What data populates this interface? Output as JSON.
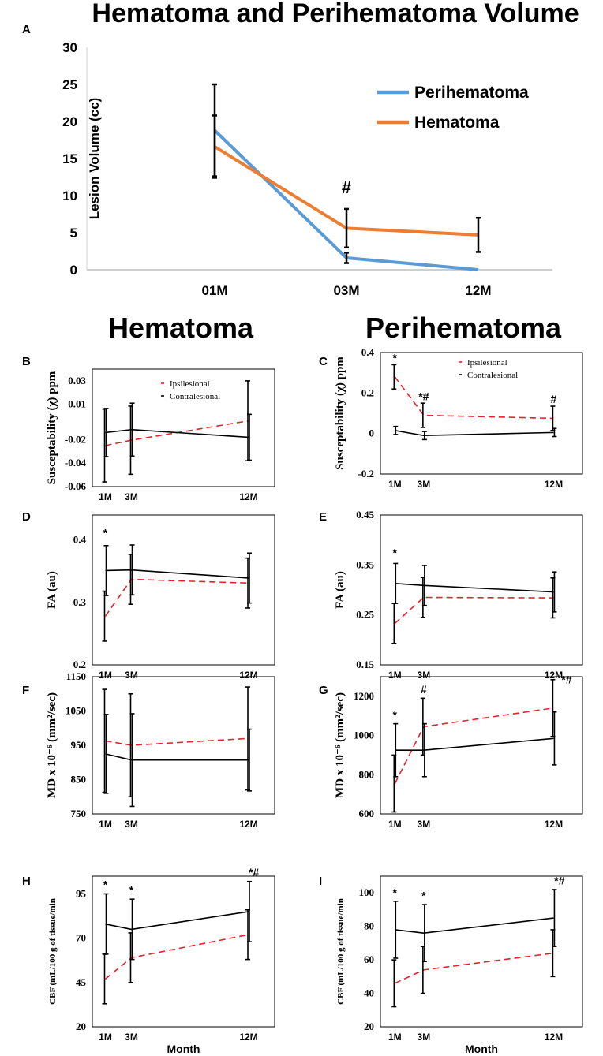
{
  "figure": {
    "panel_a_title": "Hematoma and Perihematoma Volume",
    "hematoma_heading": "Hematoma",
    "perihematoma_heading": "Perihematoma"
  },
  "chart_data": [
    {
      "id": "A",
      "type": "line",
      "panel_letter": "A",
      "ylabel": "Lesion Volume (cc)",
      "xlabel": "",
      "categories": [
        "01M",
        "03M",
        "12M"
      ],
      "ylim": [
        0,
        30
      ],
      "yticks": [
        0,
        5,
        10,
        15,
        20,
        25,
        30
      ],
      "ytick_labels": [
        "0",
        "5",
        "10",
        "15",
        "20",
        "25",
        "30"
      ],
      "legend": [
        "Perihematoma",
        "Hematoma"
      ],
      "series": [
        {
          "name": "Perihematoma",
          "color": "#5b9bd5",
          "dash": false,
          "x": [
            1,
            3,
            12
          ],
          "values": [
            18.8,
            1.6,
            0.0
          ],
          "err": [
            6.2,
            0.7,
            0
          ]
        },
        {
          "name": "Hematoma",
          "color": "#ed7d31",
          "dash": false,
          "x": [
            1,
            3,
            12
          ],
          "values": [
            16.6,
            5.6,
            4.7
          ],
          "err": [
            4.2,
            2.6,
            2.3
          ]
        }
      ],
      "annotations": [
        {
          "text": "#",
          "x": 3,
          "y": 10.3
        }
      ]
    },
    {
      "id": "B",
      "type": "line",
      "panel_letter": "B",
      "ylabel": "Susceptability (χ) ppm",
      "xlabel": "",
      "x_ticks": [
        1,
        3,
        12
      ],
      "x_tick_labels": [
        "1M",
        "3M",
        "12M"
      ],
      "xlim": [
        0,
        14
      ],
      "ylim": [
        -0.06,
        0.04
      ],
      "yticks": [
        -0.06,
        -0.04,
        -0.02,
        0.01,
        0.03
      ],
      "ytick_labels": [
        "-0.06",
        "-0.04",
        "-0.02",
        "0.01",
        "0.03"
      ],
      "legend": [
        "Ipsilesional",
        "Contralesional"
      ],
      "series": [
        {
          "name": "Ipsilesional",
          "color": "#e8222a",
          "dash": true,
          "x": [
            1,
            3,
            12
          ],
          "values": [
            -0.025,
            -0.0205,
            -0.004
          ],
          "err": [
            0.031,
            0.029,
            0.034
          ]
        },
        {
          "name": "Contralesional",
          "color": "#000000",
          "dash": false,
          "x": [
            1,
            3,
            12
          ],
          "values": [
            -0.014,
            -0.0115,
            -0.018
          ],
          "err": [
            0.0205,
            0.0225,
            0.0195
          ]
        }
      ],
      "annotations": []
    },
    {
      "id": "C",
      "type": "line",
      "panel_letter": "C",
      "ylabel": "Susceptability (χ) ppm",
      "xlabel": "",
      "x_ticks": [
        1,
        3,
        12
      ],
      "x_tick_labels": [
        "1M",
        "3M",
        "12M"
      ],
      "xlim": [
        0,
        14
      ],
      "ylim": [
        -0.2,
        0.4
      ],
      "yticks": [
        -0.2,
        0,
        0.2,
        0.4
      ],
      "ytick_labels": [
        "-0.2",
        "0",
        "0.2",
        "0.4"
      ],
      "legend": [
        "Ipsilesional",
        "Contralesional"
      ],
      "series": [
        {
          "name": "Ipsilesional",
          "color": "#e8222a",
          "dash": true,
          "x": [
            1,
            3,
            12
          ],
          "values": [
            0.28,
            0.09,
            0.075
          ],
          "err": [
            0.06,
            0.06,
            0.06
          ]
        },
        {
          "name": "Contralesional",
          "color": "#000000",
          "dash": false,
          "x": [
            1,
            3,
            12
          ],
          "values": [
            0.015,
            -0.01,
            0.005
          ],
          "err": [
            0.02,
            0.02,
            0.02
          ]
        }
      ],
      "annotations": [
        {
          "text": "*",
          "x": 1,
          "y": 0.355
        },
        {
          "text": "*#",
          "x": 3,
          "y": 0.165
        },
        {
          "text": "#",
          "x": 12,
          "y": 0.15
        }
      ]
    },
    {
      "id": "D",
      "type": "line",
      "panel_letter": "D",
      "ylabel": "FA (au)",
      "xlabel": "",
      "x_ticks": [
        1,
        3,
        12
      ],
      "x_tick_labels": [
        "1M",
        "3M",
        "12M"
      ],
      "xlim": [
        0,
        14
      ],
      "ylim": [
        0.2,
        0.44
      ],
      "yticks": [
        0.2,
        0.3,
        0.4
      ],
      "ytick_labels": [
        "0.2",
        "0.3",
        "0.4"
      ],
      "legend": [],
      "series": [
        {
          "name": "Ipsilesional",
          "color": "#e8222a",
          "dash": true,
          "x": [
            1,
            3,
            12
          ],
          "values": [
            0.278,
            0.337,
            0.331
          ],
          "err": [
            0.04,
            0.04,
            0.04
          ]
        },
        {
          "name": "Contralesional",
          "color": "#000000",
          "dash": false,
          "x": [
            1,
            3,
            12
          ],
          "values": [
            0.351,
            0.352,
            0.339
          ],
          "err": [
            0.04,
            0.04,
            0.04
          ]
        }
      ],
      "annotations": [
        {
          "text": "*",
          "x": 1,
          "y": 0.405
        }
      ]
    },
    {
      "id": "E",
      "type": "line",
      "panel_letter": "E",
      "ylabel": "FA (au)",
      "xlabel": "",
      "x_ticks": [
        1,
        3,
        12
      ],
      "x_tick_labels": [
        "1M",
        "3M",
        "12M"
      ],
      "xlim": [
        0,
        14
      ],
      "ylim": [
        0.15,
        0.45
      ],
      "yticks": [
        0.15,
        0.25,
        0.35,
        0.45
      ],
      "ytick_labels": [
        "0.15",
        "0.25",
        "0.35",
        "0.45"
      ],
      "legend": [],
      "series": [
        {
          "name": "Ipsilesional",
          "color": "#e8222a",
          "dash": true,
          "x": [
            1,
            3,
            12
          ],
          "values": [
            0.233,
            0.285,
            0.284
          ],
          "err": [
            0.04,
            0.04,
            0.04
          ]
        },
        {
          "name": "Contralesional",
          "color": "#000000",
          "dash": false,
          "x": [
            1,
            3,
            12
          ],
          "values": [
            0.313,
            0.309,
            0.296
          ],
          "err": [
            0.04,
            0.04,
            0.04
          ]
        }
      ],
      "annotations": [
        {
          "text": "*",
          "x": 1,
          "y": 0.367
        }
      ]
    },
    {
      "id": "F",
      "type": "line",
      "panel_letter": "F",
      "ylabel": "MD x 10⁻⁶ (mm²/sec)",
      "xlabel": "",
      "x_ticks": [
        1,
        3,
        12
      ],
      "x_tick_labels": [
        "1M",
        "3M",
        "12M"
      ],
      "xlim": [
        0,
        14
      ],
      "ylim": [
        750,
        1150
      ],
      "yticks": [
        750,
        850,
        950,
        1050,
        1150
      ],
      "ytick_labels": [
        "750",
        "850",
        "950",
        "1050",
        "1150"
      ],
      "legend": [],
      "series": [
        {
          "name": "Ipsilesional",
          "color": "#e8222a",
          "dash": true,
          "x": [
            1,
            3,
            12
          ],
          "values": [
            963,
            950,
            970
          ],
          "err": [
            150,
            150,
            150
          ]
        },
        {
          "name": "Contralesional",
          "color": "#000000",
          "dash": false,
          "x": [
            1,
            3,
            12
          ],
          "values": [
            925,
            907,
            907
          ],
          "err": [
            115,
            135,
            90
          ]
        }
      ],
      "annotations": []
    },
    {
      "id": "G",
      "type": "line",
      "panel_letter": "G",
      "ylabel": "MD x 10⁻⁶ (mm²/sec)",
      "xlabel": "",
      "x_ticks": [
        1,
        3,
        12
      ],
      "x_tick_labels": [
        "1M",
        "3M",
        "12M"
      ],
      "xlim": [
        0,
        14
      ],
      "ylim": [
        600,
        1300
      ],
      "yticks": [
        600,
        800,
        1000,
        1200
      ],
      "ytick_labels": [
        "600",
        "800",
        "1000",
        "1200"
      ],
      "legend": [],
      "series": [
        {
          "name": "Ipsilesional",
          "color": "#e8222a",
          "dash": true,
          "x": [
            1,
            3,
            12
          ],
          "values": [
            755,
            1045,
            1140
          ],
          "err": [
            145,
            145,
            145
          ]
        },
        {
          "name": "Contralesional",
          "color": "#000000",
          "dash": false,
          "x": [
            1,
            3,
            12
          ],
          "values": [
            925,
            925,
            985
          ],
          "err": [
            135,
            135,
            135
          ]
        }
      ],
      "annotations": [
        {
          "text": "*",
          "x": 1,
          "y": 1085
        },
        {
          "text": "#",
          "x": 3,
          "y": 1215
        },
        {
          "text": "*#",
          "x": 12.9,
          "y": 1265
        }
      ]
    },
    {
      "id": "H",
      "type": "line",
      "panel_letter": "H",
      "ylabel": "CBF (mL/100 g of tissue/min",
      "xlabel": "Month",
      "x_ticks": [
        1,
        3,
        12
      ],
      "x_tick_labels": [
        "1M",
        "3M",
        "12M"
      ],
      "xlim": [
        0,
        14
      ],
      "ylim": [
        20,
        105
      ],
      "yticks": [
        20,
        45,
        70,
        95
      ],
      "ytick_labels": [
        "20",
        "45",
        "70",
        "95"
      ],
      "legend": [],
      "series": [
        {
          "name": "Ipsilesional",
          "color": "#e8222a",
          "dash": true,
          "x": [
            1,
            3,
            12
          ],
          "values": [
            47,
            59,
            72
          ],
          "err": [
            14,
            14,
            14
          ]
        },
        {
          "name": "Contralesional",
          "color": "#000000",
          "dash": false,
          "x": [
            1,
            3,
            12
          ],
          "values": [
            78,
            75,
            85
          ],
          "err": [
            17,
            17,
            17
          ]
        }
      ],
      "annotations": [
        {
          "text": "*",
          "x": 1,
          "y": 98
        },
        {
          "text": "*",
          "x": 3,
          "y": 95
        },
        {
          "text": "*#",
          "x": 12.4,
          "y": 105
        }
      ]
    },
    {
      "id": "I",
      "type": "line",
      "panel_letter": "I",
      "ylabel": "CBF (mL/100 g of tissue/min",
      "xlabel": "Month",
      "x_ticks": [
        1,
        3,
        12
      ],
      "x_tick_labels": [
        "1M",
        "3M",
        "12M"
      ],
      "xlim": [
        0,
        14
      ],
      "ylim": [
        20,
        110
      ],
      "yticks": [
        20,
        40,
        60,
        80,
        100
      ],
      "ytick_labels": [
        "20",
        "40",
        "60",
        "80",
        "100"
      ],
      "legend": [],
      "series": [
        {
          "name": "Ipsilesional",
          "color": "#e8222a",
          "dash": true,
          "x": [
            1,
            3,
            12
          ],
          "values": [
            46,
            54,
            64
          ],
          "err": [
            14,
            14,
            14
          ]
        },
        {
          "name": "Contralesional",
          "color": "#000000",
          "dash": false,
          "x": [
            1,
            3,
            12
          ],
          "values": [
            78,
            76,
            85
          ],
          "err": [
            17,
            17,
            17
          ]
        }
      ],
      "annotations": [
        {
          "text": "*",
          "x": 1,
          "y": 98
        },
        {
          "text": "*",
          "x": 3,
          "y": 96
        },
        {
          "text": "*#",
          "x": 12.4,
          "y": 105
        }
      ]
    }
  ]
}
